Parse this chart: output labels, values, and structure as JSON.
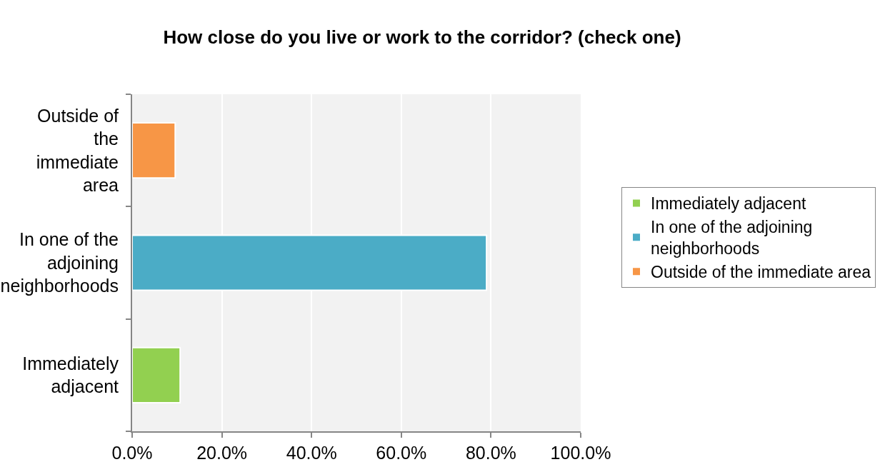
{
  "chart_data": {
    "type": "bar",
    "orientation": "horizontal",
    "title": "How close do you live or work to the corridor? (check one)",
    "categories": [
      "Outside of the immediate area",
      "In one of the adjoining neighborhoods",
      "Immediately adjacent"
    ],
    "series": [
      {
        "name": "Immediately adjacent",
        "color": "#92d050",
        "values": [
          null,
          null,
          10.7
        ]
      },
      {
        "name": "In one of the adjoining neighborhoods",
        "color": "#4bacc6",
        "values": [
          null,
          79.0,
          null
        ]
      },
      {
        "name": "Outside of the immediate area",
        "color": "#f79646",
        "values": [
          9.6,
          null,
          null
        ]
      }
    ],
    "xlim": [
      0,
      100
    ],
    "xticks": [
      {
        "value": 0,
        "label": "0.0%"
      },
      {
        "value": 20,
        "label": "20.0%"
      },
      {
        "value": 40,
        "label": "40.0%"
      },
      {
        "value": 60,
        "label": "60.0%"
      },
      {
        "value": 80,
        "label": "80.0%"
      },
      {
        "value": 100,
        "label": "100.0%"
      }
    ],
    "grid": "x",
    "legend": "right"
  }
}
